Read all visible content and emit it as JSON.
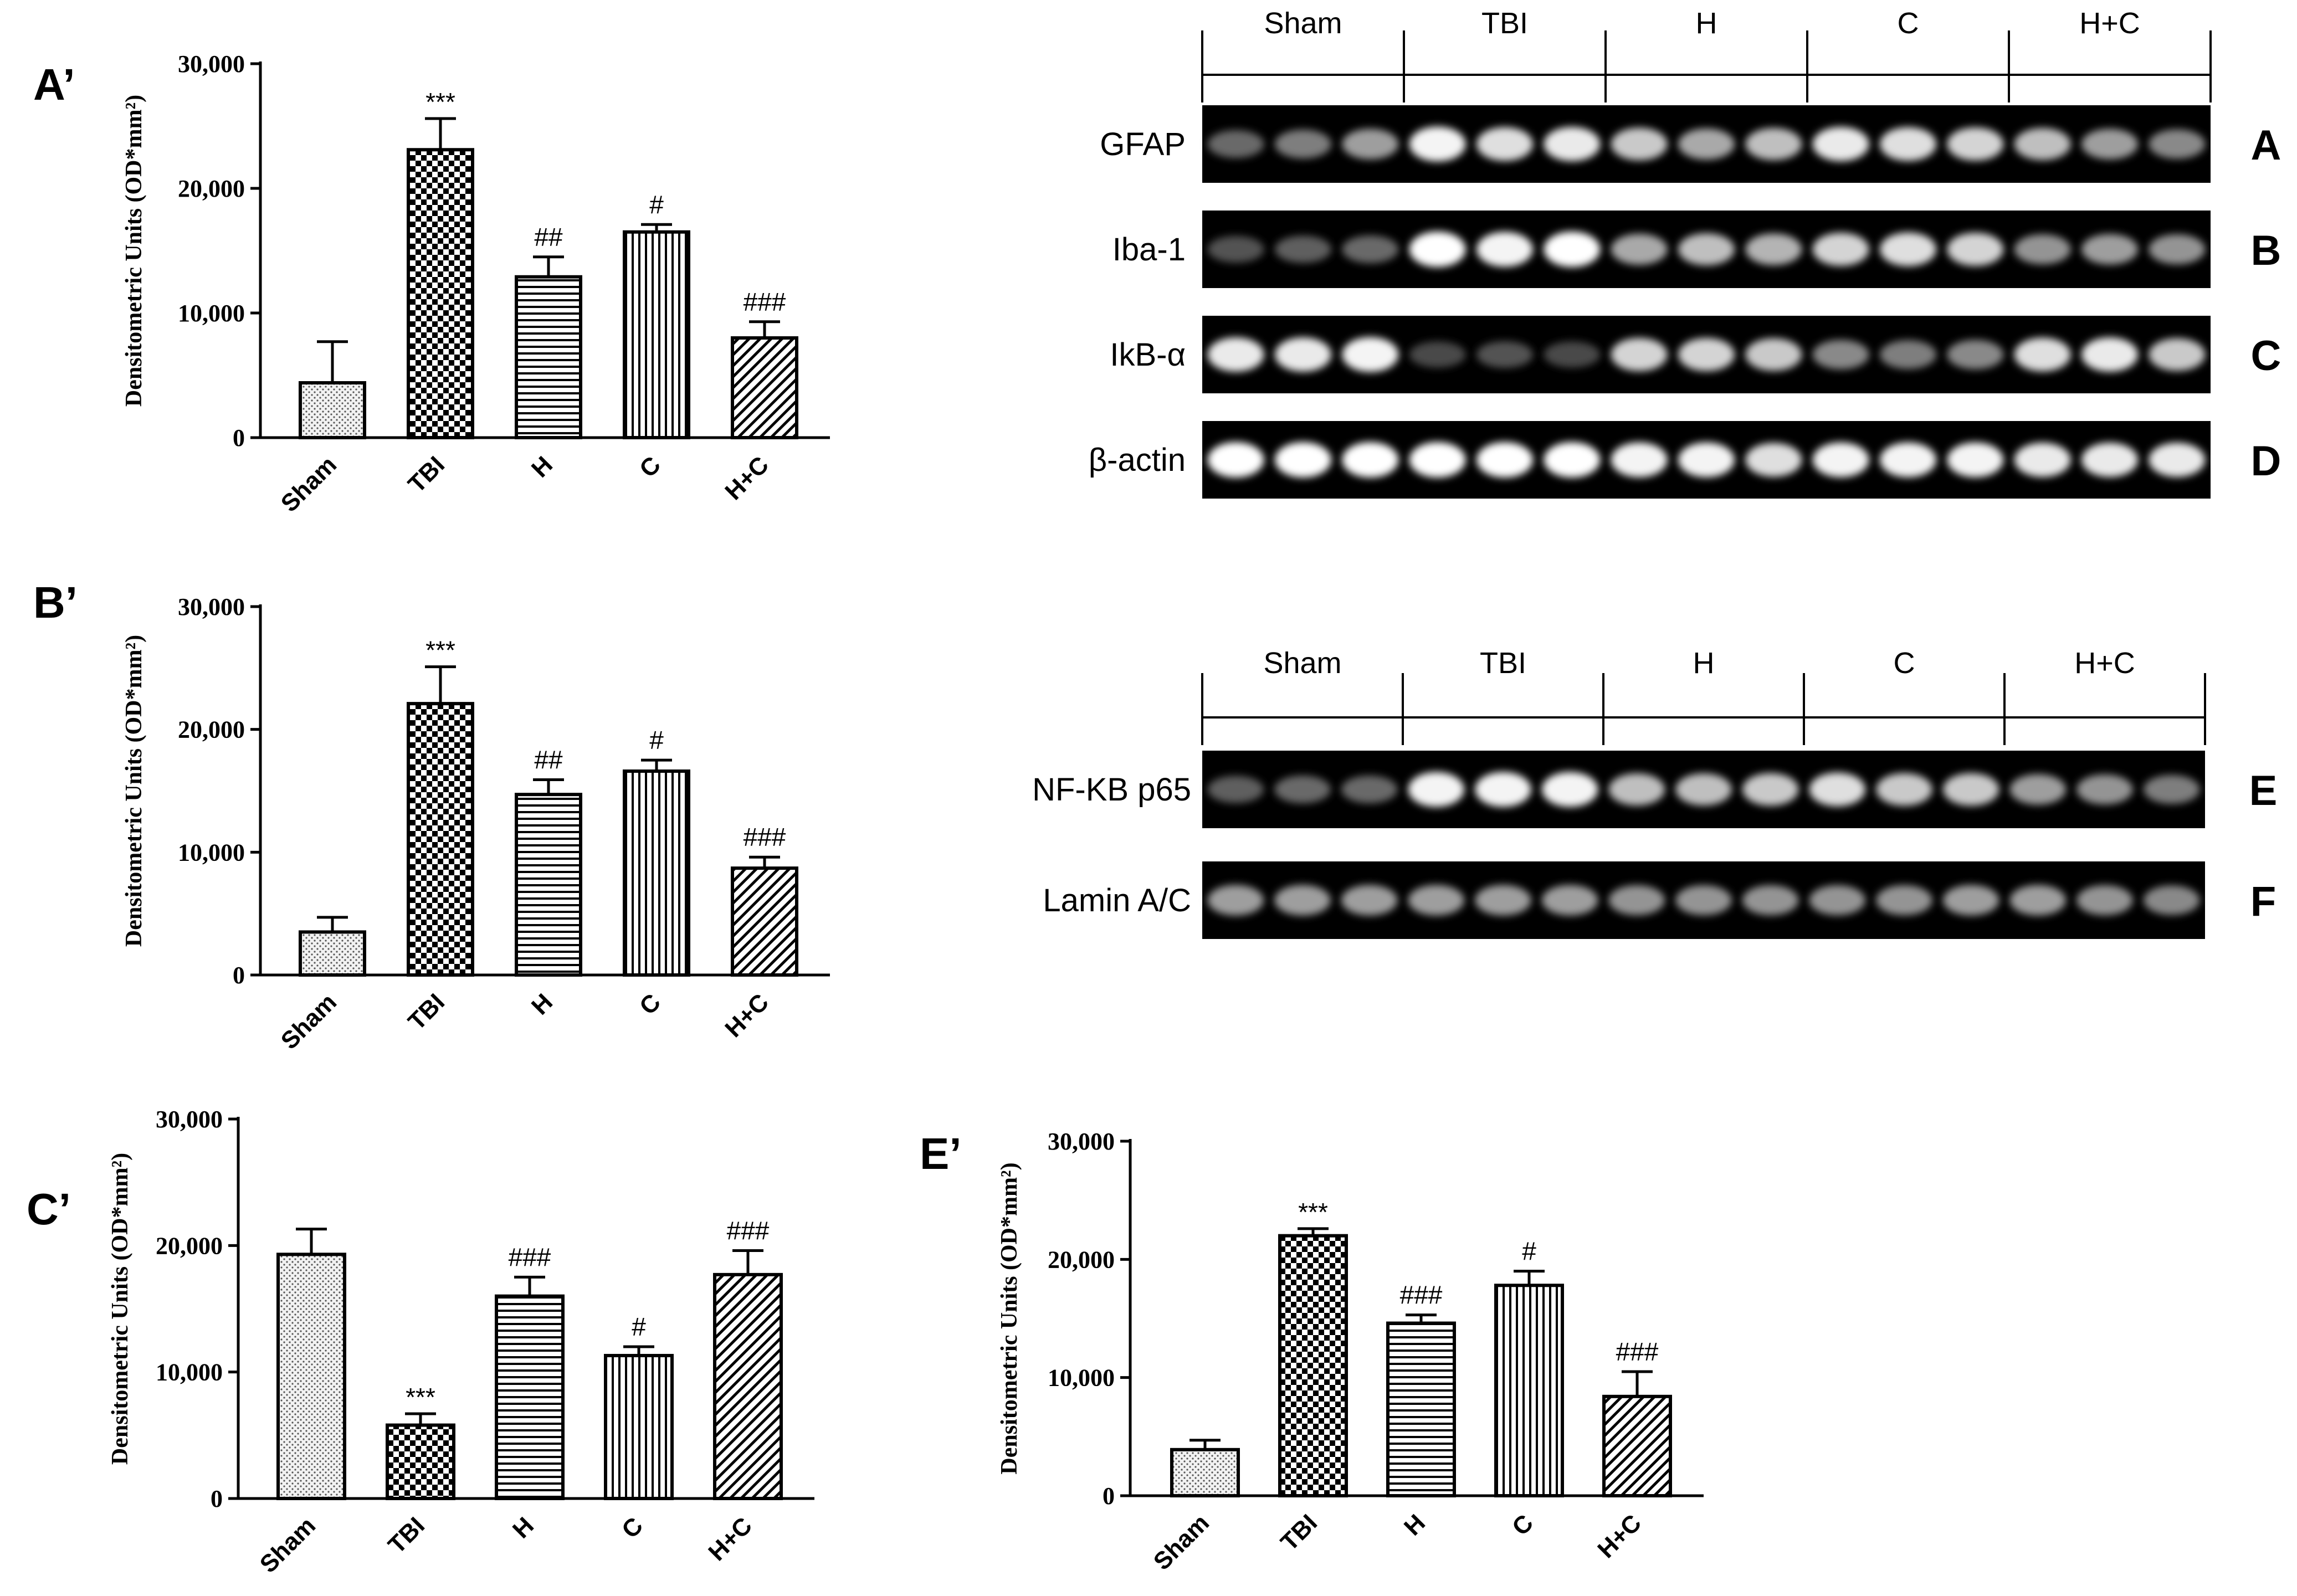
{
  "chart_data": [
    {
      "type": "bar",
      "panel": "A’",
      "ylabel": "Densitometric Units (OD*mm²)",
      "ylim": [
        0,
        30000
      ],
      "yticks": [
        "0",
        "10,000",
        "20,000",
        "30,000"
      ],
      "categories": [
        "Sham",
        "TBI",
        "H",
        "C",
        "H+C"
      ],
      "values": [
        4400,
        23100,
        12900,
        16500,
        8000
      ],
      "errors": [
        3300,
        2500,
        1600,
        600,
        1300
      ],
      "annotations": [
        "",
        "***",
        "##",
        "#",
        "###"
      ],
      "patterns": [
        "dots",
        "checker",
        "hlines",
        "vlines",
        "diag"
      ]
    },
    {
      "type": "bar",
      "panel": "B’",
      "ylabel": "Densitometric Units (OD*mm²)",
      "ylim": [
        0,
        30000
      ],
      "yticks": [
        "0",
        "10,000",
        "20,000",
        "30,000"
      ],
      "categories": [
        "Sham",
        "TBI",
        "H",
        "C",
        "H+C"
      ],
      "values": [
        3500,
        22100,
        14700,
        16600,
        8700
      ],
      "errors": [
        1200,
        3000,
        1200,
        900,
        900
      ],
      "annotations": [
        "",
        "***",
        "##",
        "#",
        "###"
      ],
      "patterns": [
        "dots",
        "checker",
        "hlines",
        "vlines",
        "diag"
      ]
    },
    {
      "type": "bar",
      "panel": "C’",
      "ylabel": "Densitometric Units (OD*mm²)",
      "ylim": [
        0,
        30000
      ],
      "yticks": [
        "0",
        "10,000",
        "20,000",
        "30,000"
      ],
      "categories": [
        "Sham",
        "TBI",
        "H",
        "C",
        "H+C"
      ],
      "values": [
        19300,
        5800,
        16000,
        11300,
        17700
      ],
      "errors": [
        2000,
        900,
        1500,
        700,
        1900
      ],
      "annotations": [
        "",
        "***",
        "###",
        "#",
        "###"
      ],
      "patterns": [
        "dots",
        "checker",
        "hlines",
        "vlines",
        "diag"
      ]
    },
    {
      "type": "bar",
      "panel": "E’",
      "ylabel": "Densitometric Units (OD*mm²)",
      "ylim": [
        0,
        30000
      ],
      "yticks": [
        "0",
        "10,000",
        "20,000",
        "30,000"
      ],
      "categories": [
        "Sham",
        "TBI",
        "H",
        "C",
        "H+C"
      ],
      "values": [
        3900,
        22000,
        14600,
        17800,
        8400
      ],
      "errors": [
        800,
        600,
        700,
        1200,
        2100
      ],
      "annotations": [
        "",
        "***",
        "###",
        "#",
        "###"
      ],
      "patterns": [
        "dots",
        "checker",
        "hlines",
        "vlines",
        "diag"
      ]
    }
  ],
  "blots": [
    {
      "groups": [
        "Sham",
        "TBI",
        "H",
        "C",
        "H+C"
      ],
      "rows": [
        {
          "label": "GFAP",
          "letter": "A",
          "lanes": [
            0.3,
            0.4,
            0.55,
            0.95,
            0.85,
            0.9,
            0.75,
            0.6,
            0.7,
            0.9,
            0.85,
            0.8,
            0.7,
            0.55,
            0.45
          ]
        },
        {
          "label": "Iba-1",
          "letter": "B",
          "lanes": [
            0.2,
            0.25,
            0.3,
            1.0,
            0.95,
            1.0,
            0.6,
            0.7,
            0.65,
            0.8,
            0.85,
            0.8,
            0.5,
            0.55,
            0.5
          ]
        },
        {
          "label": "IkB-α",
          "letter": "C",
          "lanes": [
            0.9,
            0.9,
            0.95,
            0.15,
            0.2,
            0.15,
            0.8,
            0.8,
            0.75,
            0.45,
            0.4,
            0.45,
            0.85,
            0.9,
            0.75
          ]
        },
        {
          "label": "β-actin",
          "letter": "D",
          "lanes": [
            1.0,
            1.0,
            1.0,
            1.0,
            1.0,
            1.0,
            0.95,
            0.95,
            0.85,
            0.95,
            0.95,
            0.95,
            0.9,
            0.9,
            0.9
          ]
        }
      ]
    },
    {
      "groups": [
        "Sham",
        "TBI",
        "H",
        "C",
        "H+C"
      ],
      "rows": [
        {
          "label": "NF-KB p65",
          "letter": "E",
          "lanes": [
            0.25,
            0.3,
            0.3,
            0.95,
            0.95,
            0.95,
            0.7,
            0.7,
            0.75,
            0.85,
            0.75,
            0.75,
            0.55,
            0.5,
            0.4
          ]
        },
        {
          "label": "Lamin A/C",
          "letter": "F",
          "lanes": [
            0.55,
            0.55,
            0.55,
            0.55,
            0.55,
            0.55,
            0.5,
            0.5,
            0.5,
            0.5,
            0.5,
            0.55,
            0.55,
            0.5,
            0.45
          ]
        }
      ]
    }
  ]
}
